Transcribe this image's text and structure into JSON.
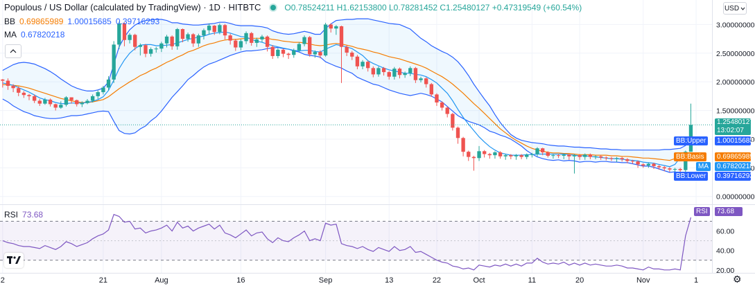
{
  "header": {
    "title": "Populous / US Dollar (calculated by TradingView) · 1D · HITBTC",
    "ohlc": "O0.78524211 H1.62153800 L0.78281452 C1.25480127 +0.47319549 (+60.54%)"
  },
  "legend": {
    "bb_label": "BB",
    "bb_basis": "0.69865989",
    "bb_upper": "1.00015685",
    "bb_lower": "0.39716293",
    "ma_label": "MA",
    "ma_value": "0.67820218",
    "rsi_label": "RSI",
    "rsi_value": "73.68"
  },
  "currency": "USD",
  "price_tags": {
    "last_price": "1.25480127",
    "countdown": "13:02:07",
    "bb_upper_label": "BB:Upper",
    "bb_upper_value": "1.00015685",
    "bb_basis_label": "BB:Basis",
    "bb_basis_value": "0.69865989",
    "ma_label": "MA",
    "ma_value": "0.67820218",
    "bb_lower_label": "BB:Lower",
    "bb_lower_value": "0.39716293",
    "rsi_label": "RSI",
    "rsi_value": "73.68"
  },
  "colors": {
    "up": "#26a69a",
    "down": "#ef5350",
    "bb_bands": "#2962ff",
    "bb_basis": "#f57c00",
    "ma": "#2196f3",
    "rsi": "#7e57c2"
  },
  "chart_data": {
    "type": "candlestick",
    "price_axis": {
      "ticks": [
        0,
        0.5,
        1.0,
        1.5,
        2.0,
        2.5,
        3.0
      ],
      "labels": [
        "0.00000000",
        "0.50000000",
        "1.00000000",
        "1.50000000",
        "2.00000000",
        "2.50000000",
        "3.00000000"
      ],
      "range": [
        -0.1,
        3.15
      ]
    },
    "rsi_axis": {
      "ticks": [
        20,
        40,
        60
      ],
      "labels": [
        "20.00",
        "40.00",
        "60.00"
      ],
      "range": [
        17,
        86
      ],
      "bands": [
        30,
        70
      ]
    },
    "x_axis": {
      "ticks": [
        {
          "i": 0,
          "label": "2"
        },
        {
          "i": 19,
          "label": "21"
        },
        {
          "i": 30,
          "label": "Aug"
        },
        {
          "i": 45,
          "label": "16"
        },
        {
          "i": 61,
          "label": "Sep"
        },
        {
          "i": 73,
          "label": "13"
        },
        {
          "i": 82,
          "label": "22"
        },
        {
          "i": 90,
          "label": "Oct"
        },
        {
          "i": 100,
          "label": "11"
        },
        {
          "i": 109,
          "label": "20"
        },
        {
          "i": 121,
          "label": "Nov"
        },
        {
          "i": 131,
          "label": "1"
        }
      ],
      "range": [
        -0.5,
        134
      ]
    },
    "series": [
      {
        "name": "price",
        "type": "candle",
        "close": [
          2.02,
          1.93,
          1.89,
          1.81,
          1.77,
          1.75,
          1.67,
          1.62,
          1.69,
          1.61,
          1.55,
          1.6,
          1.73,
          1.68,
          1.61,
          1.63,
          1.67,
          1.75,
          1.82,
          1.9,
          2.04,
          2.65,
          3.02,
          2.73,
          2.82,
          2.61,
          2.64,
          2.49,
          2.57,
          2.58,
          2.67,
          2.79,
          2.62,
          2.92,
          2.75,
          2.83,
          2.67,
          2.81,
          2.9,
          2.98,
          2.87,
          2.99,
          2.81,
          2.72,
          2.6,
          2.71,
          2.85,
          2.68,
          2.74,
          2.79,
          2.61,
          2.45,
          2.56,
          2.49,
          2.47,
          2.55,
          2.66,
          2.78,
          2.48,
          2.52,
          2.46,
          3.0,
          2.93,
          2.97,
          2.61,
          2.51,
          2.44,
          2.27,
          2.35,
          2.24,
          2.13,
          2.24,
          2.17,
          2.09,
          2.23,
          2.12,
          2.15,
          2.24,
          2.03,
          2.06,
          1.96,
          1.78,
          1.64,
          1.55,
          1.44,
          1.2,
          1.02,
          0.78,
          0.69,
          0.67,
          0.79,
          0.74,
          0.72,
          0.77,
          0.7,
          0.72,
          0.7,
          0.72,
          0.69,
          0.73,
          0.74,
          0.84,
          0.77,
          0.71,
          0.72,
          0.71,
          0.73,
          0.7,
          0.72,
          0.69,
          0.73,
          0.69,
          0.7,
          0.68,
          0.67,
          0.66,
          0.67,
          0.65,
          0.62,
          0.61,
          0.56,
          0.54,
          0.57,
          0.53,
          0.51,
          0.49,
          0.47,
          0.48,
          0.46,
          0.78,
          1.25
        ],
        "high": [
          2.05,
          2.06,
          1.96,
          1.92,
          1.84,
          1.79,
          1.78,
          1.7,
          1.72,
          1.71,
          1.62,
          1.66,
          1.75,
          1.73,
          1.69,
          1.66,
          1.7,
          1.78,
          1.85,
          1.93,
          2.1,
          2.71,
          3.05,
          3.04,
          2.85,
          2.84,
          2.67,
          2.66,
          2.6,
          2.61,
          2.7,
          2.82,
          2.81,
          2.94,
          2.93,
          2.86,
          2.85,
          2.84,
          2.93,
          3.02,
          2.99,
          3.02,
          3.01,
          2.84,
          2.75,
          2.74,
          2.88,
          2.87,
          2.77,
          2.82,
          2.81,
          2.64,
          2.59,
          2.58,
          2.51,
          2.58,
          2.69,
          2.81,
          2.8,
          2.55,
          2.55,
          3.03,
          3.02,
          2.99,
          2.98,
          2.64,
          2.54,
          2.47,
          2.38,
          2.37,
          2.27,
          2.27,
          2.26,
          2.19,
          2.26,
          2.25,
          2.18,
          2.27,
          2.26,
          2.09,
          2.08,
          1.98,
          1.8,
          1.66,
          1.57,
          1.46,
          1.22,
          1.04,
          0.8,
          0.71,
          0.88,
          0.81,
          0.76,
          0.79,
          0.79,
          0.74,
          0.74,
          0.74,
          0.74,
          0.75,
          0.76,
          0.86,
          0.85,
          0.79,
          0.74,
          0.74,
          0.75,
          0.74,
          0.74,
          0.74,
          0.75,
          0.75,
          0.72,
          0.72,
          0.7,
          0.69,
          0.69,
          0.69,
          0.67,
          0.64,
          0.63,
          0.58,
          0.59,
          0.59,
          0.55,
          0.53,
          0.51,
          0.5,
          0.5,
          0.8,
          1.62
        ],
        "low": [
          1.9,
          1.86,
          1.82,
          1.75,
          1.72,
          1.68,
          1.63,
          1.58,
          1.6,
          1.57,
          1.5,
          1.53,
          1.57,
          1.62,
          1.57,
          1.56,
          1.61,
          1.64,
          1.7,
          1.78,
          1.85,
          1.98,
          2.57,
          2.62,
          2.67,
          2.55,
          2.46,
          2.43,
          2.44,
          2.51,
          2.52,
          2.6,
          2.56,
          2.56,
          2.69,
          2.7,
          2.61,
          2.61,
          2.74,
          2.83,
          2.82,
          2.83,
          2.74,
          2.65,
          2.54,
          2.55,
          2.66,
          2.63,
          2.61,
          2.69,
          2.53,
          2.4,
          2.41,
          2.43,
          2.4,
          2.42,
          2.51,
          2.62,
          2.44,
          2.42,
          2.41,
          2.44,
          2.86,
          2.82,
          1.98,
          2.45,
          2.38,
          2.22,
          2.22,
          2.18,
          2.08,
          2.09,
          2.11,
          2.04,
          2.04,
          2.06,
          2.07,
          2.1,
          1.98,
          1.99,
          1.9,
          1.74,
          1.58,
          1.5,
          1.38,
          1.15,
          0.92,
          0.7,
          0.62,
          0.45,
          0.62,
          0.68,
          0.66,
          0.66,
          0.66,
          0.64,
          0.65,
          0.64,
          0.65,
          0.65,
          0.68,
          0.7,
          0.72,
          0.68,
          0.66,
          0.67,
          0.65,
          0.64,
          0.4,
          0.64,
          0.64,
          0.65,
          0.65,
          0.64,
          0.63,
          0.62,
          0.6,
          0.61,
          0.58,
          0.57,
          0.5,
          0.5,
          0.5,
          0.48,
          0.47,
          0.44,
          0.43,
          0.42,
          0.38,
          0.43,
          0.78
        ]
      },
      {
        "name": "bb_upper",
        "type": "line",
        "values": [
          2.2,
          2.25,
          2.3,
          2.33,
          2.34,
          2.33,
          2.31,
          2.27,
          2.23,
          2.18,
          2.12,
          2.05,
          1.99,
          1.93,
          1.89,
          1.86,
          1.84,
          1.84,
          1.86,
          1.89,
          2.0,
          2.31,
          2.61,
          2.78,
          2.91,
          2.99,
          3.04,
          3.07,
          3.08,
          3.09,
          3.09,
          3.07,
          3.03,
          3.03,
          3.01,
          3.0,
          2.99,
          2.99,
          3.0,
          3.01,
          3.02,
          3.04,
          3.04,
          3.02,
          2.99,
          2.98,
          2.98,
          2.98,
          2.97,
          2.96,
          2.94,
          2.89,
          2.86,
          2.84,
          2.83,
          2.84,
          2.86,
          2.88,
          2.86,
          2.83,
          2.83,
          2.93,
          3.01,
          3.07,
          3.08,
          3.09,
          3.09,
          3.1,
          3.1,
          3.1,
          3.08,
          3.06,
          3.04,
          3.02,
          3.01,
          3.0,
          2.96,
          2.92,
          2.84,
          2.76,
          2.7,
          2.63,
          2.58,
          2.53,
          2.49,
          2.43,
          2.35,
          2.24,
          2.11,
          1.96,
          1.83,
          1.7,
          1.58,
          1.43,
          1.29,
          1.18,
          1.08,
          1.02,
          0.98,
          0.96,
          0.94,
          0.93,
          0.92,
          0.9,
          0.89,
          0.88,
          0.88,
          0.87,
          0.86,
          0.86,
          0.85,
          0.85,
          0.84,
          0.83,
          0.83,
          0.82,
          0.82,
          0.81,
          0.81,
          0.81,
          0.81,
          0.81,
          0.81,
          0.81,
          0.81,
          0.82,
          0.82,
          0.83,
          0.84,
          0.89,
          1.0
        ]
      },
      {
        "name": "bb_basis",
        "type": "line",
        "values": [
          1.95,
          1.95,
          1.94,
          1.93,
          1.91,
          1.89,
          1.86,
          1.83,
          1.8,
          1.77,
          1.74,
          1.71,
          1.69,
          1.67,
          1.65,
          1.64,
          1.64,
          1.65,
          1.67,
          1.69,
          1.74,
          1.81,
          1.88,
          1.94,
          2.0,
          2.05,
          2.11,
          2.15,
          2.2,
          2.24,
          2.29,
          2.34,
          2.38,
          2.43,
          2.47,
          2.52,
          2.55,
          2.59,
          2.63,
          2.66,
          2.68,
          2.71,
          2.73,
          2.74,
          2.74,
          2.75,
          2.76,
          2.76,
          2.76,
          2.76,
          2.76,
          2.74,
          2.73,
          2.71,
          2.7,
          2.69,
          2.69,
          2.68,
          2.66,
          2.64,
          2.63,
          2.64,
          2.66,
          2.67,
          2.66,
          2.64,
          2.62,
          2.59,
          2.57,
          2.55,
          2.52,
          2.5,
          2.47,
          2.44,
          2.42,
          2.4,
          2.37,
          2.34,
          2.31,
          2.28,
          2.24,
          2.19,
          2.14,
          2.09,
          2.03,
          1.96,
          1.88,
          1.8,
          1.71,
          1.62,
          1.54,
          1.45,
          1.36,
          1.27,
          1.18,
          1.11,
          1.04,
          0.98,
          0.93,
          0.88,
          0.84,
          0.81,
          0.79,
          0.77,
          0.76,
          0.76,
          0.75,
          0.75,
          0.74,
          0.73,
          0.73,
          0.73,
          0.72,
          0.72,
          0.72,
          0.71,
          0.71,
          0.7,
          0.7,
          0.69,
          0.68,
          0.67,
          0.67,
          0.66,
          0.65,
          0.64,
          0.63,
          0.66,
          0.7
        ]
      },
      {
        "name": "bb_lower",
        "type": "line",
        "values": [
          1.7,
          1.65,
          1.58,
          1.53,
          1.48,
          1.45,
          1.41,
          1.39,
          1.37,
          1.36,
          1.36,
          1.37,
          1.39,
          1.41,
          1.41,
          1.42,
          1.44,
          1.46,
          1.48,
          1.49,
          1.48,
          1.31,
          1.15,
          1.1,
          1.09,
          1.11,
          1.18,
          1.23,
          1.32,
          1.39,
          1.49,
          1.61,
          1.73,
          1.83,
          1.93,
          2.04,
          2.11,
          2.19,
          2.26,
          2.31,
          2.34,
          2.38,
          2.42,
          2.46,
          2.49,
          2.52,
          2.54,
          2.54,
          2.55,
          2.56,
          2.58,
          2.59,
          2.6,
          2.58,
          2.57,
          2.54,
          2.52,
          2.48,
          2.46,
          2.45,
          2.43,
          2.35,
          2.31,
          2.27,
          2.24,
          2.19,
          2.15,
          2.08,
          2.04,
          2.0,
          1.96,
          1.94,
          1.9,
          1.86,
          1.83,
          1.8,
          1.78,
          1.76,
          1.78,
          1.8,
          1.78,
          1.75,
          1.7,
          1.65,
          1.57,
          1.49,
          1.41,
          1.36,
          1.31,
          1.28,
          1.25,
          1.2,
          1.14,
          1.11,
          1.07,
          1.04,
          1.0,
          0.94,
          0.88,
          0.8,
          0.74,
          0.69,
          0.66,
          0.64,
          0.63,
          0.64,
          0.62,
          0.63,
          0.62,
          0.6,
          0.61,
          0.61,
          0.6,
          0.61,
          0.61,
          0.6,
          0.6,
          0.59,
          0.59,
          0.57,
          0.55,
          0.53,
          0.53,
          0.51,
          0.48,
          0.45,
          0.42,
          0.43,
          0.4
        ]
      },
      {
        "name": "ma",
        "type": "line",
        "values": [
          1.98,
          1.96,
          1.94,
          1.9,
          1.86,
          1.82,
          1.77,
          1.72,
          1.69,
          1.67,
          1.64,
          1.62,
          1.62,
          1.63,
          1.63,
          1.63,
          1.64,
          1.66,
          1.69,
          1.74,
          1.85,
          2.03,
          2.23,
          2.38,
          2.5,
          2.58,
          2.64,
          2.65,
          2.65,
          2.63,
          2.63,
          2.64,
          2.65,
          2.68,
          2.71,
          2.74,
          2.76,
          2.78,
          2.8,
          2.83,
          2.85,
          2.86,
          2.87,
          2.85,
          2.82,
          2.79,
          2.78,
          2.74,
          2.71,
          2.69,
          2.66,
          2.63,
          2.61,
          2.59,
          2.57,
          2.55,
          2.54,
          2.55,
          2.55,
          2.53,
          2.52,
          2.57,
          2.61,
          2.65,
          2.63,
          2.61,
          2.58,
          2.52,
          2.46,
          2.37,
          2.32,
          2.28,
          2.24,
          2.21,
          2.19,
          2.17,
          2.15,
          2.15,
          2.13,
          2.12,
          2.09,
          2.04,
          1.98,
          1.89,
          1.8,
          1.67,
          1.52,
          1.38,
          1.26,
          1.15,
          1.04,
          0.95,
          0.87,
          0.81,
          0.76,
          0.74,
          0.72,
          0.72,
          0.72,
          0.73,
          0.73,
          0.74,
          0.74,
          0.74,
          0.74,
          0.74,
          0.74,
          0.73,
          0.72,
          0.71,
          0.71,
          0.7,
          0.69,
          0.68,
          0.67,
          0.66,
          0.66,
          0.65,
          0.64,
          0.63,
          0.62,
          0.6,
          0.59,
          0.58,
          0.56,
          0.54,
          0.52,
          0.56,
          0.68
        ]
      },
      {
        "name": "RSI",
        "type": "line",
        "values": [
          50,
          48,
          47,
          45,
          44,
          44,
          43,
          42,
          45,
          43,
          41,
          44,
          49,
          47,
          44,
          46,
          48,
          52,
          55,
          57,
          61,
          77,
          75,
          69,
          70,
          62,
          63,
          58,
          60,
          61,
          63,
          66,
          60,
          69,
          63,
          65,
          60,
          63,
          65,
          67,
          62,
          66,
          58,
          56,
          53,
          57,
          61,
          55,
          58,
          59,
          52,
          48,
          53,
          50,
          49,
          53,
          56,
          60,
          50,
          52,
          50,
          68,
          66,
          67,
          47,
          45,
          44,
          42,
          44,
          41,
          39,
          43,
          41,
          39,
          44,
          40,
          41,
          44,
          38,
          39,
          36,
          33,
          30,
          28,
          27,
          24,
          23,
          21,
          22,
          20,
          25,
          24,
          23,
          25,
          24,
          26,
          24,
          26,
          24,
          27,
          27,
          32,
          28,
          26,
          27,
          26,
          28,
          25,
          27,
          25,
          27,
          25,
          26,
          25,
          24,
          24,
          25,
          24,
          22,
          22,
          21,
          20,
          23,
          21,
          21,
          20,
          20,
          21,
          20,
          55,
          74
        ]
      }
    ]
  }
}
